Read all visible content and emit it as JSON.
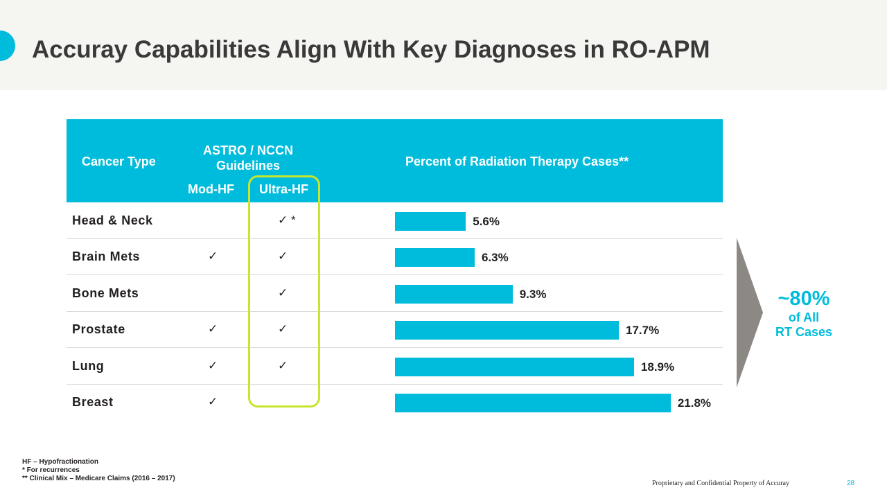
{
  "slide": {
    "title": "Accuray Capabilities Align With Key Diagnoses in RO-APM",
    "footer": "Proprietary and Confidential Property of Accuray",
    "page_number": "28",
    "accent_color": "#00bcdc",
    "highlight_color": "#c8e62f"
  },
  "table": {
    "header": {
      "cancer_type": "Cancer Type",
      "guidelines": "ASTRO / NCCN Guidelines",
      "mod_hf": "Mod-HF",
      "ultra_hf": "Ultra-HF",
      "percent": "Percent of Radiation Therapy Cases**"
    }
  },
  "chart_data": {
    "type": "bar",
    "orientation": "horizontal",
    "title": "Percent of Radiation Therapy Cases**",
    "unit": "%",
    "xlim": [
      0,
      25
    ],
    "rows": [
      {
        "category": "Head & Neck",
        "value": 5.6,
        "label": "5.6%",
        "mod_hf": "",
        "ultra_hf": "✓ *"
      },
      {
        "category": "Brain Mets",
        "value": 6.3,
        "label": "6.3%",
        "mod_hf": "✓",
        "ultra_hf": "✓"
      },
      {
        "category": "Bone Mets",
        "value": 9.3,
        "label": "9.3%",
        "mod_hf": "",
        "ultra_hf": "✓"
      },
      {
        "category": "Prostate",
        "value": 17.7,
        "label": "17.7%",
        "mod_hf": "✓",
        "ultra_hf": "✓"
      },
      {
        "category": "Lung",
        "value": 18.9,
        "label": "18.9%",
        "mod_hf": "✓",
        "ultra_hf": "✓"
      },
      {
        "category": "Breast",
        "value": 21.8,
        "label": "21.8%",
        "mod_hf": "✓",
        "ultra_hf": ""
      }
    ]
  },
  "callout": {
    "big": "~80%",
    "line1": "of All",
    "line2": "RT Cases"
  },
  "footnotes": [
    "HF – Hypofractionation",
    "* For recurrences",
    "** Clinical Mix – Medicare Claims (2016 – 2017)"
  ]
}
